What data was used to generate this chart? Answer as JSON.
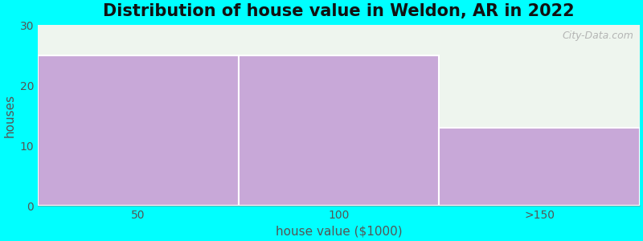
{
  "title": "Distribution of house value in Weldon, AR in 2022",
  "categories": [
    "50",
    "100",
    ">150"
  ],
  "values": [
    25,
    25,
    13
  ],
  "bar_color": "#c8a8d8",
  "xlabel": "house value ($1000)",
  "ylabel": "houses",
  "ylim": [
    0,
    30
  ],
  "yticks": [
    0,
    10,
    20,
    30
  ],
  "background_color": "#00ffff",
  "plot_bg_color": "#eef5ee",
  "title_fontsize": 15,
  "axis_label_fontsize": 11,
  "tick_fontsize": 10,
  "bar_width": 1.0,
  "watermark": "City-Data.com"
}
